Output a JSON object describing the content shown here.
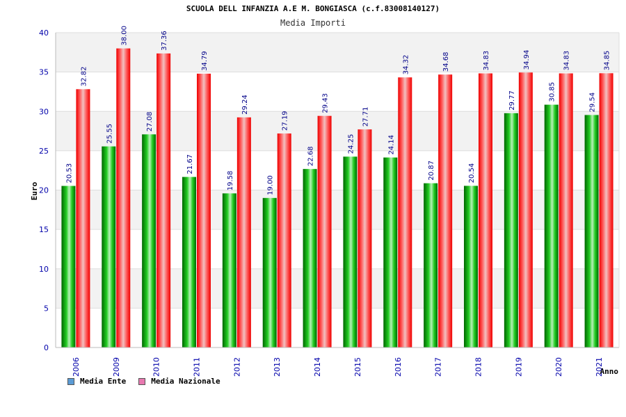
{
  "chart_data": {
    "type": "bar",
    "title": "SCUOLA DELL INFANZIA A.E M. BONGIASCA (c.f.83008140127)",
    "subtitle": "Media Importi",
    "xlabel": "Anno",
    "ylabel": "Euro",
    "ylim": [
      0,
      40
    ],
    "yticks": [
      "0",
      "5",
      "10",
      "15",
      "20",
      "25",
      "30",
      "35",
      "40"
    ],
    "categories": [
      "2006",
      "2009",
      "2010",
      "2011",
      "2012",
      "2013",
      "2014",
      "2015",
      "2016",
      "2017",
      "2018",
      "2019",
      "2020",
      "2021"
    ],
    "series": [
      {
        "name": "Media Ente",
        "color": "#00aa00",
        "swatch_color": "#5b9bd5",
        "values": [
          20.53,
          25.55,
          27.08,
          21.67,
          19.58,
          19.0,
          22.68,
          24.25,
          24.14,
          20.87,
          20.54,
          29.77,
          30.85,
          29.54
        ],
        "labels": [
          "20.53",
          "25.55",
          "27.08",
          "21.67",
          "19.58",
          "19.00",
          "22.68",
          "24.25",
          "24.14",
          "20.87",
          "20.54",
          "29.77",
          "30.85",
          "29.54"
        ]
      },
      {
        "name": "Media Nazionale",
        "color": "#ee1111",
        "swatch_color": "#e879b0",
        "values": [
          32.82,
          38.0,
          37.36,
          34.79,
          29.24,
          27.19,
          29.43,
          27.71,
          34.32,
          34.68,
          34.83,
          34.94,
          34.83,
          34.85
        ],
        "labels": [
          "32.82",
          "38.00",
          "37.36",
          "34.79",
          "29.24",
          "27.19",
          "29.43",
          "27.71",
          "34.32",
          "34.68",
          "34.83",
          "34.94",
          "34.83",
          "34.85"
        ]
      }
    ],
    "grid": true,
    "legend_position": "bottom-left"
  }
}
